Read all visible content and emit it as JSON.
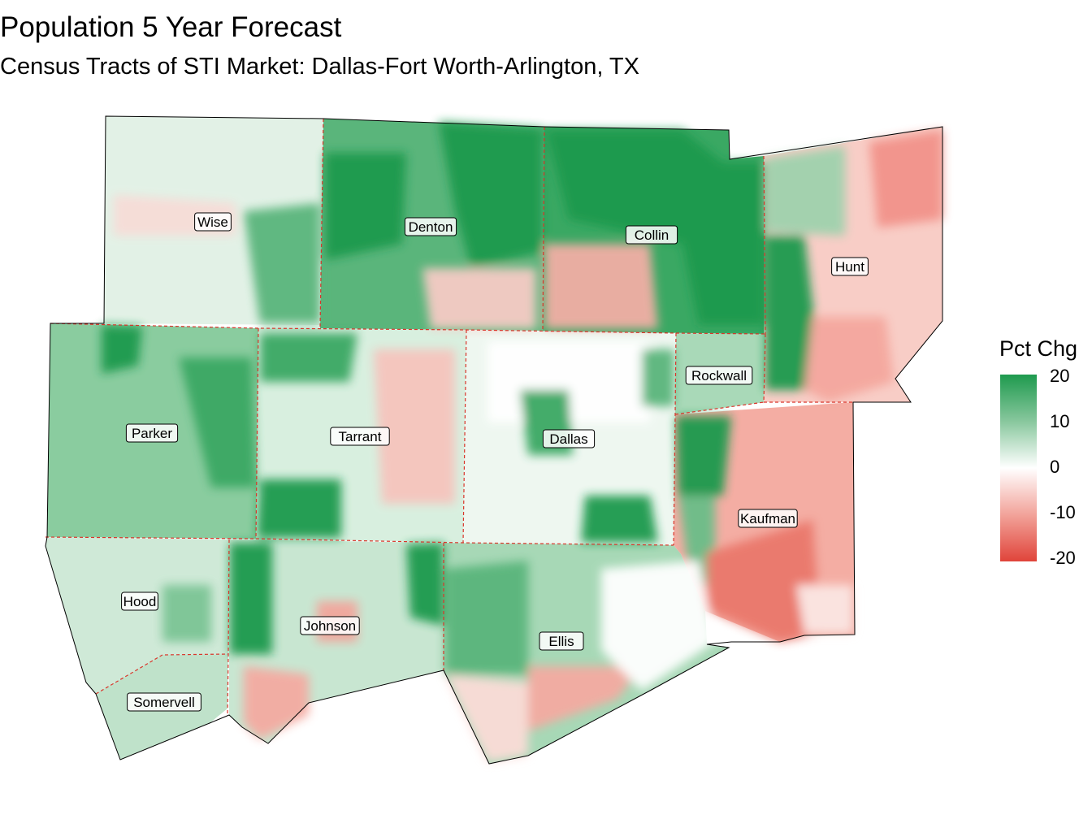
{
  "title": "Population 5 Year Forecast",
  "subtitle": "Census Tracts of STI Market: Dallas-Fort Worth-Arlington, TX",
  "legend": {
    "title": "Pct Chg",
    "ticks": [
      "20",
      "10",
      "0",
      "-10",
      "-20"
    ],
    "low_color": "#e0443a",
    "mid_color": "#ffffff",
    "high_color": "#1e9a4e"
  },
  "counties": [
    {
      "name": "Wise",
      "shade": 2
    },
    {
      "name": "Denton",
      "shade": 10
    },
    {
      "name": "Collin",
      "shade": 14
    },
    {
      "name": "Hunt",
      "shade": -5
    },
    {
      "name": "Parker",
      "shade": 10
    },
    {
      "name": "Tarrant",
      "shade": 1
    },
    {
      "name": "Dallas",
      "shade": 3
    },
    {
      "name": "Rockwall",
      "shade": 8
    },
    {
      "name": "Kaufman",
      "shade": -8
    },
    {
      "name": "Hood",
      "shade": 6
    },
    {
      "name": "Johnson",
      "shade": 5
    },
    {
      "name": "Ellis",
      "shade": 6
    },
    {
      "name": "Somervell",
      "shade": 7
    }
  ]
}
